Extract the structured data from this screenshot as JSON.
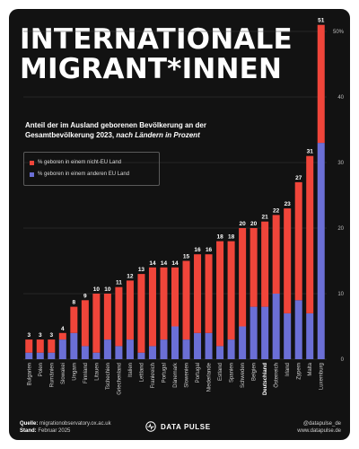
{
  "title_lines": [
    "INTERNATIONALE",
    "MIGRANT*INNEN"
  ],
  "subtitle_lines": [
    "Anteil der im Ausland geborenen Bevölkerung an der",
    "Gesamtbevölkerung 2023,"
  ],
  "subtitle_italic": "nach Ländern in Prozent",
  "legend": {
    "non_eu": "% geboren in einem nicht-EU Land",
    "eu": "% geboren in einem anderen EU Land"
  },
  "colors": {
    "non_eu": "#f0453a",
    "eu": "#6b6fd6",
    "background": "#121212",
    "grid": "#3a3a3a"
  },
  "chart_data": {
    "type": "bar",
    "stacked": true,
    "categories": [
      "Bulgarien",
      "Polen",
      "Rumänien",
      "Slowakei",
      "Ungarn",
      "Finnland",
      "Litauen",
      "Tschechien",
      "Griechenland",
      "Italien",
      "Lettland",
      "Frankreich",
      "Portugal",
      "Dänemark",
      "Slowenien",
      "Portugal",
      "Niederlande",
      "Estland",
      "Spanien",
      "Schweden",
      "Belgien",
      "Deutschland",
      "Österreich",
      "Irland",
      "Zypern",
      "Malta",
      "Luxemburg"
    ],
    "series": [
      {
        "name": "% geboren in einem anderen EU Land",
        "values": [
          1,
          1,
          1,
          3,
          4,
          2,
          1,
          3,
          2,
          3,
          1,
          2,
          3,
          5,
          3,
          4,
          4,
          2,
          3,
          5,
          8,
          8,
          10,
          7,
          9,
          7,
          33
        ]
      },
      {
        "name": "% geboren in einem nicht-EU Land",
        "values": [
          2,
          2,
          2,
          1,
          4,
          7,
          9,
          7,
          9,
          9,
          12,
          12,
          11,
          9,
          12,
          12,
          12,
          16,
          15,
          15,
          12,
          13,
          12,
          16,
          18,
          24,
          18
        ]
      }
    ],
    "totals": [
      3,
      3,
      3,
      4,
      8,
      9,
      10,
      10,
      11,
      12,
      13,
      14,
      14,
      14,
      15,
      16,
      16,
      18,
      18,
      20,
      20,
      21,
      22,
      23,
      27,
      31,
      51
    ],
    "highlight_category": "Deutschland",
    "y_ticks": [
      0,
      10,
      20,
      30,
      40,
      50
    ],
    "y_tick_labels": [
      "0",
      "10",
      "20",
      "30",
      "40",
      "50%"
    ],
    "ylim": [
      0,
      51
    ],
    "grid": true
  },
  "footer": {
    "source_label": "Quelle:",
    "source_value": "migrationobservatory.ox.ac.uk",
    "date_label": "Stand:",
    "date_value": "Februar 2025",
    "brand": "DATA PULSE",
    "social_handle": "@datapulse_de",
    "website": "www.datapulse.de"
  }
}
